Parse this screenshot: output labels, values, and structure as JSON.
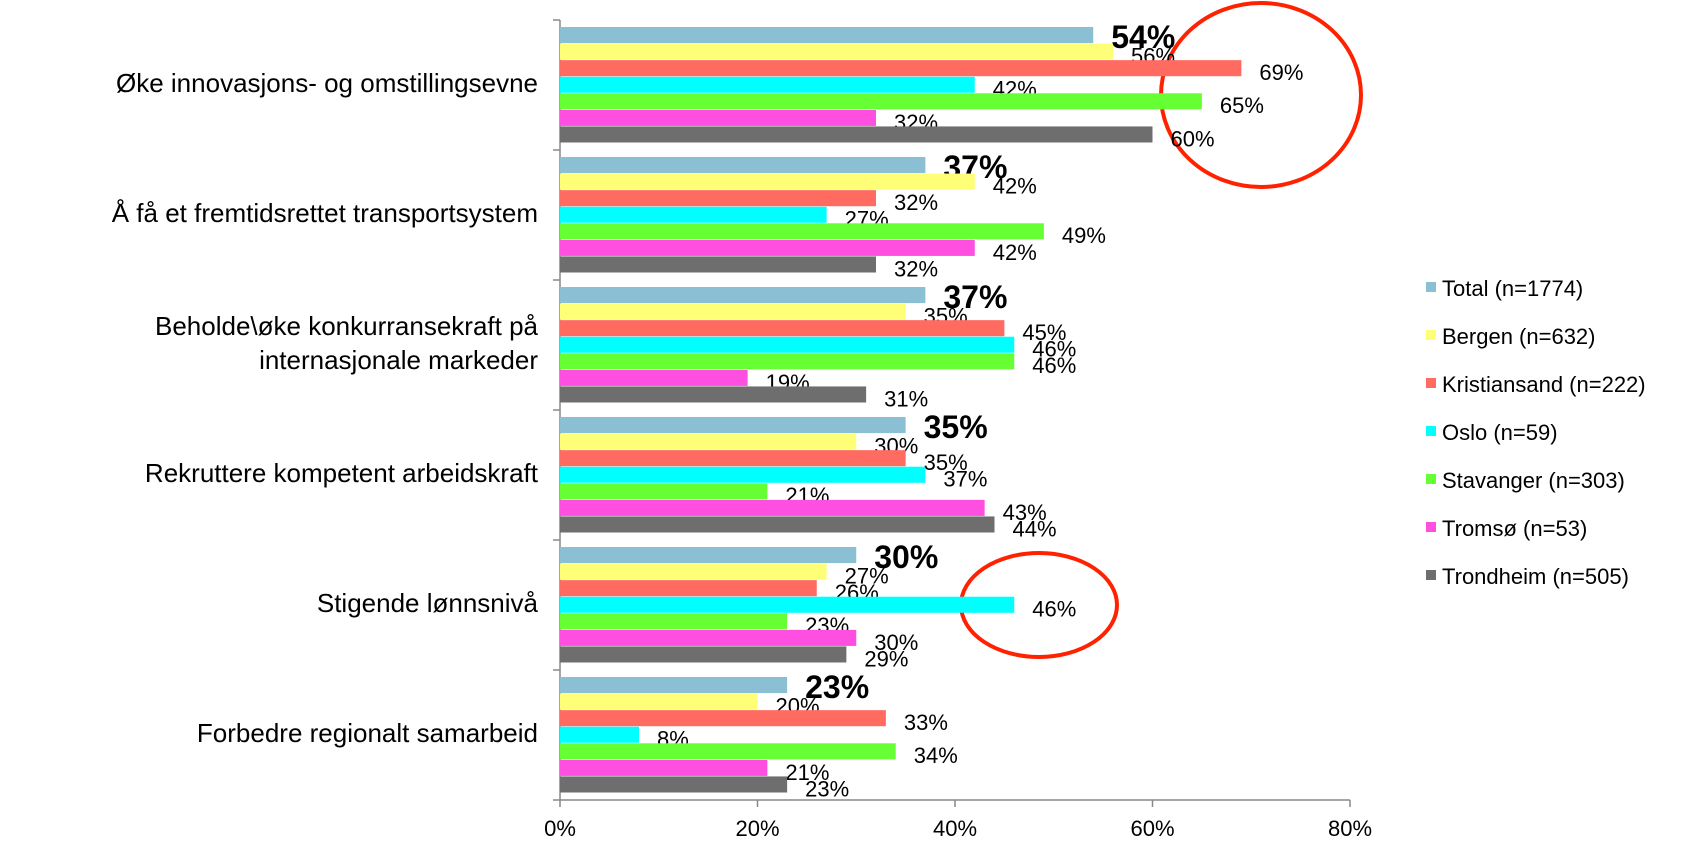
{
  "chart_data": {
    "type": "bar",
    "orientation": "horizontal",
    "categories": [
      "Øke innovasjons- og omstillingsevne",
      "Å få et fremtidsrettet transportsystem",
      "Beholde\\øke konkurransekraft på internasjonale markeder",
      "Rekruttere kompetent arbeidskraft",
      "Stigende lønnsnivå",
      "Forbedre regionalt samarbeid"
    ],
    "series": [
      {
        "name": "Total (n=1774)",
        "color": "#8bbfd4",
        "values": [
          54,
          37,
          37,
          35,
          30,
          23
        ],
        "value_labels": [
          "54%",
          "37%",
          "37%",
          "35%",
          "30%",
          "23%"
        ]
      },
      {
        "name": "Bergen (n=632)",
        "color": "#ffff77",
        "values": [
          56,
          42,
          35,
          30,
          27,
          20
        ],
        "value_labels": [
          "56%",
          "42%",
          "35%",
          "30%",
          "27%",
          "20%"
        ]
      },
      {
        "name": "Kristiansand (n=222)",
        "color": "#ff6b61",
        "values": [
          69,
          32,
          45,
          35,
          26,
          33
        ],
        "value_labels": [
          "69%",
          "32%",
          "45%",
          "35%",
          "26%",
          "33%"
        ]
      },
      {
        "name": "Oslo (n=59)",
        "color": "#00ffff",
        "values": [
          42,
          27,
          46,
          37,
          46,
          8
        ],
        "value_labels": [
          "42%",
          "27%",
          "46%",
          "37%",
          "46%",
          "8%"
        ]
      },
      {
        "name": "Stavanger (n=303)",
        "color": "#66ff33",
        "values": [
          65,
          49,
          46,
          21,
          23,
          34
        ],
        "value_labels": [
          "65%",
          "49%",
          "46%",
          "21%",
          "23%",
          "34%"
        ]
      },
      {
        "name": "Tromsø (n=53)",
        "color": "#ff4fe0",
        "values": [
          32,
          42,
          19,
          43,
          30,
          21
        ],
        "value_labels": [
          "32%",
          "42%",
          "19%",
          "43%",
          "30%",
          "21%"
        ]
      },
      {
        "name": "Trondheim (n=505)",
        "color": "#6e6e6e",
        "values": [
          60,
          32,
          31,
          44,
          29,
          23
        ],
        "value_labels": [
          "60%",
          "32%",
          "31%",
          "44%",
          "29%",
          "23%"
        ]
      }
    ],
    "xlim": [
      0,
      80
    ],
    "xticks": [
      {
        "value": 0,
        "label": "0%"
      },
      {
        "value": 20,
        "label": "20%"
      },
      {
        "value": 40,
        "label": "40%"
      },
      {
        "value": 60,
        "label": "60%"
      },
      {
        "value": 80,
        "label": "80%"
      }
    ],
    "legend": "right"
  }
}
